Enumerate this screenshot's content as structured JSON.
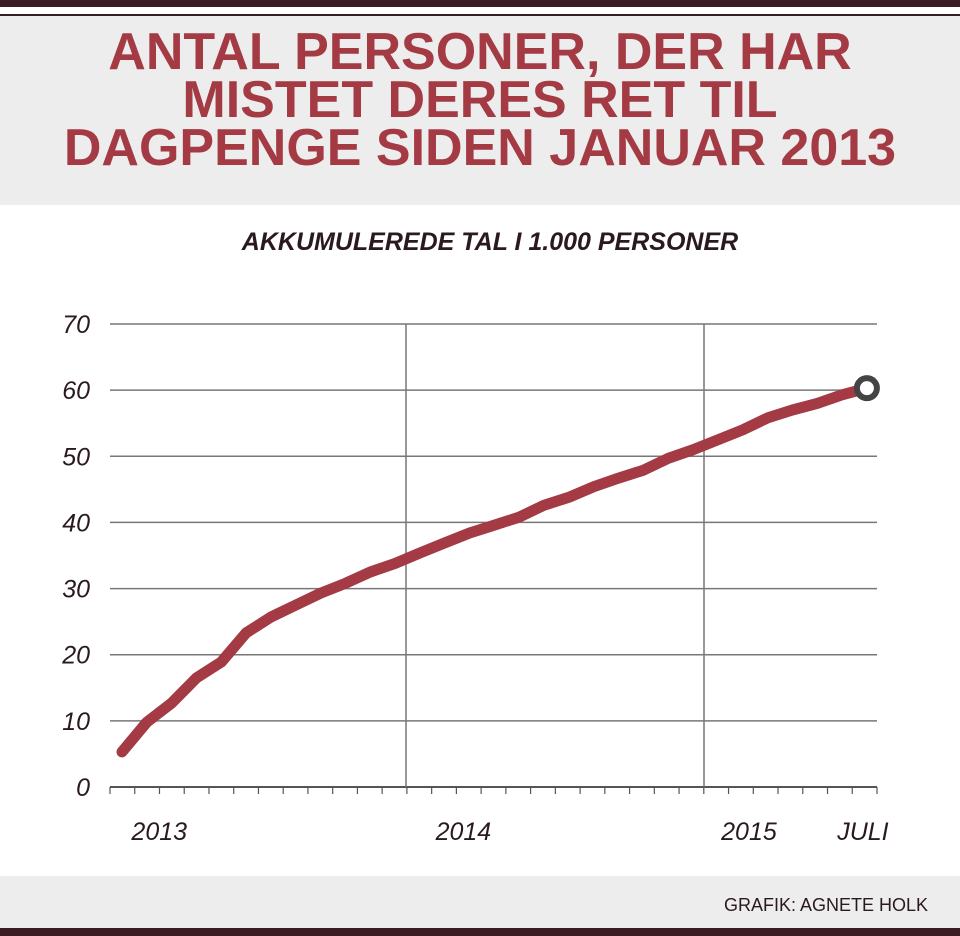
{
  "header": {
    "title_lines": [
      "ANTAL PERSONER, DER HAR",
      "MISTET DERES RET TIL",
      "DAGPENGE SIDEN JANUAR 2013"
    ]
  },
  "footer": {
    "credit": "GRAFIK: AGNETE HOLK"
  },
  "colors": {
    "accent": "#a33a44",
    "dark": "#3a1c22",
    "band": "#ededed",
    "endpoint": "#444444"
  },
  "chart_data": {
    "type": "line",
    "title": "ANTAL PERSONER, DER HAR MISTET DERES RET TIL DAGPENGE SIDEN JANUAR 2013",
    "subtitle": "AKKUMULEREDE TAL I 1.000 PERSONER",
    "xlabel": "",
    "ylabel": "",
    "ylim": [
      0,
      70
    ],
    "yticks": [
      0,
      10,
      20,
      30,
      40,
      50,
      60,
      70
    ],
    "ytick_labels": [
      "0",
      "10",
      "20",
      "30",
      "40",
      "50",
      "60",
      "70"
    ],
    "xtick_labels": [
      {
        "label": "2013",
        "month_index": 1.5
      },
      {
        "label": "2014",
        "month_index": 13.75
      },
      {
        "label": "2015",
        "month_index": 25.25
      },
      {
        "label": "JULI",
        "month_index": 30
      }
    ],
    "grid": true,
    "x": [
      "2013-01",
      "2013-02",
      "2013-03",
      "2013-04",
      "2013-05",
      "2013-06",
      "2013-07",
      "2013-08",
      "2013-09",
      "2013-10",
      "2013-11",
      "2013-12",
      "2014-01",
      "2014-02",
      "2014-03",
      "2014-04",
      "2014-05",
      "2014-06",
      "2014-07",
      "2014-08",
      "2014-09",
      "2014-10",
      "2014-11",
      "2014-12",
      "2015-01",
      "2015-02",
      "2015-03",
      "2015-04",
      "2015-05",
      "2015-06",
      "2015-07"
    ],
    "series": [
      {
        "name": "Akkumulerede personer (1.000)",
        "values": [
          5.3,
          9.8,
          12.7,
          16.5,
          18.9,
          23.3,
          25.7,
          27.5,
          29.3,
          30.8,
          32.5,
          33.8,
          35.4,
          36.9,
          38.4,
          39.6,
          40.8,
          42.6,
          43.8,
          45.4,
          46.7,
          47.9,
          49.7,
          51.0,
          52.5,
          54.0,
          55.8,
          57.0,
          58.0,
          59.3,
          60.3
        ]
      }
    ]
  }
}
